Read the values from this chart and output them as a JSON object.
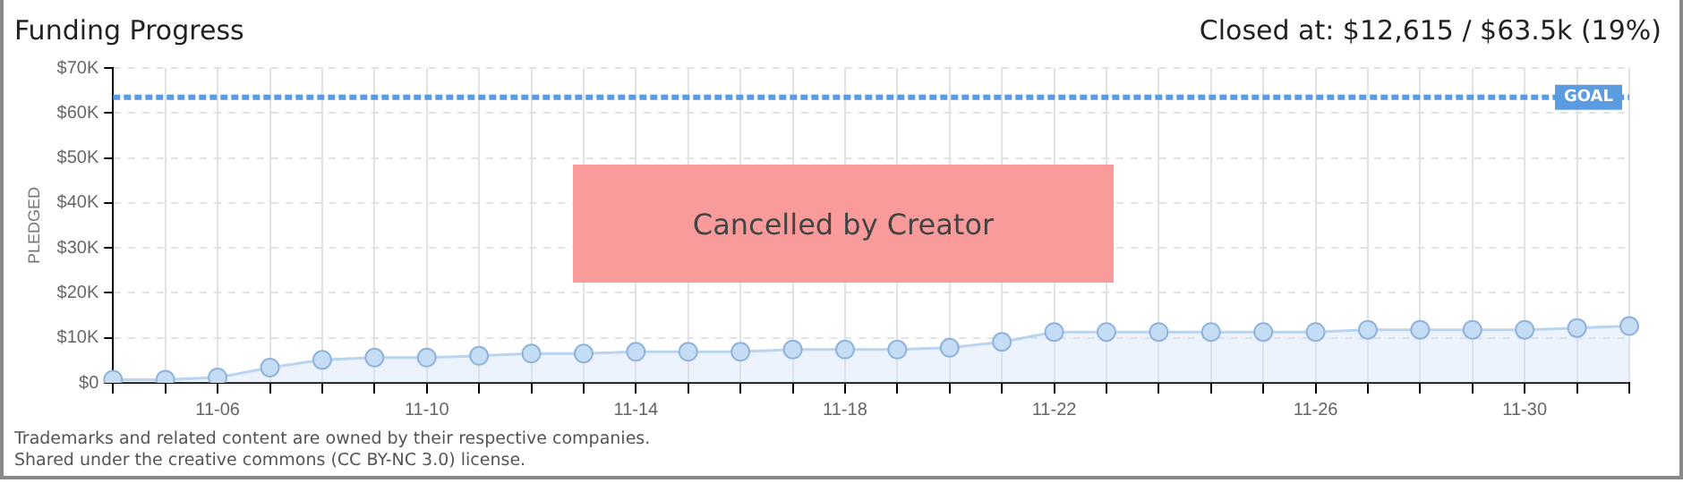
{
  "chart_data": {
    "type": "area",
    "title": "Funding Progress",
    "subtitle": "Closed at: $12,615 / $63.5k (19%)",
    "ylabel": "PLEDGED",
    "categories": [
      null,
      null,
      "11-06",
      null,
      null,
      null,
      "11-10",
      null,
      null,
      null,
      "11-14",
      null,
      null,
      null,
      "11-18",
      null,
      null,
      null,
      "11-22",
      null,
      null,
      null,
      null,
      "11-26",
      null,
      null,
      null,
      "11-30",
      null,
      null
    ],
    "series": [
      {
        "color": "#b8d4f0",
        "values": [
          700,
          700,
          1200,
          3400,
          5100,
          5600,
          5600,
          6000,
          6500,
          6500,
          6900,
          6900,
          6900,
          7400,
          7400,
          7400,
          7800,
          9100,
          11300,
          11300,
          11300,
          11300,
          11300,
          11300,
          11800,
          11800,
          11800,
          11800,
          12200,
          12615
        ]
      }
    ],
    "ylim": [
      0,
      70000
    ],
    "yticks": [
      {
        "value": 0,
        "label": "$0"
      },
      {
        "value": 10000,
        "label": "$10K"
      },
      {
        "value": 20000,
        "label": "$20K"
      },
      {
        "value": 30000,
        "label": "$30K"
      },
      {
        "value": 40000,
        "label": "$40K"
      },
      {
        "value": 50000,
        "label": "$50K"
      },
      {
        "value": 60000,
        "label": "$60K"
      },
      {
        "value": 70000,
        "label": "$70K"
      }
    ],
    "ref_lines": [
      {
        "axis": "y",
        "value": 63500,
        "label": "GOAL",
        "color": "#5b9be0",
        "line_style": "dashed"
      }
    ],
    "annotations": [
      "Cancelled by Creator",
      "Trademarks and related content are owned by their respective companies.",
      "Shared under the creative commons (CC BY-NC 3.0) license."
    ],
    "grid": true,
    "marker": "circle",
    "legend": false
  }
}
